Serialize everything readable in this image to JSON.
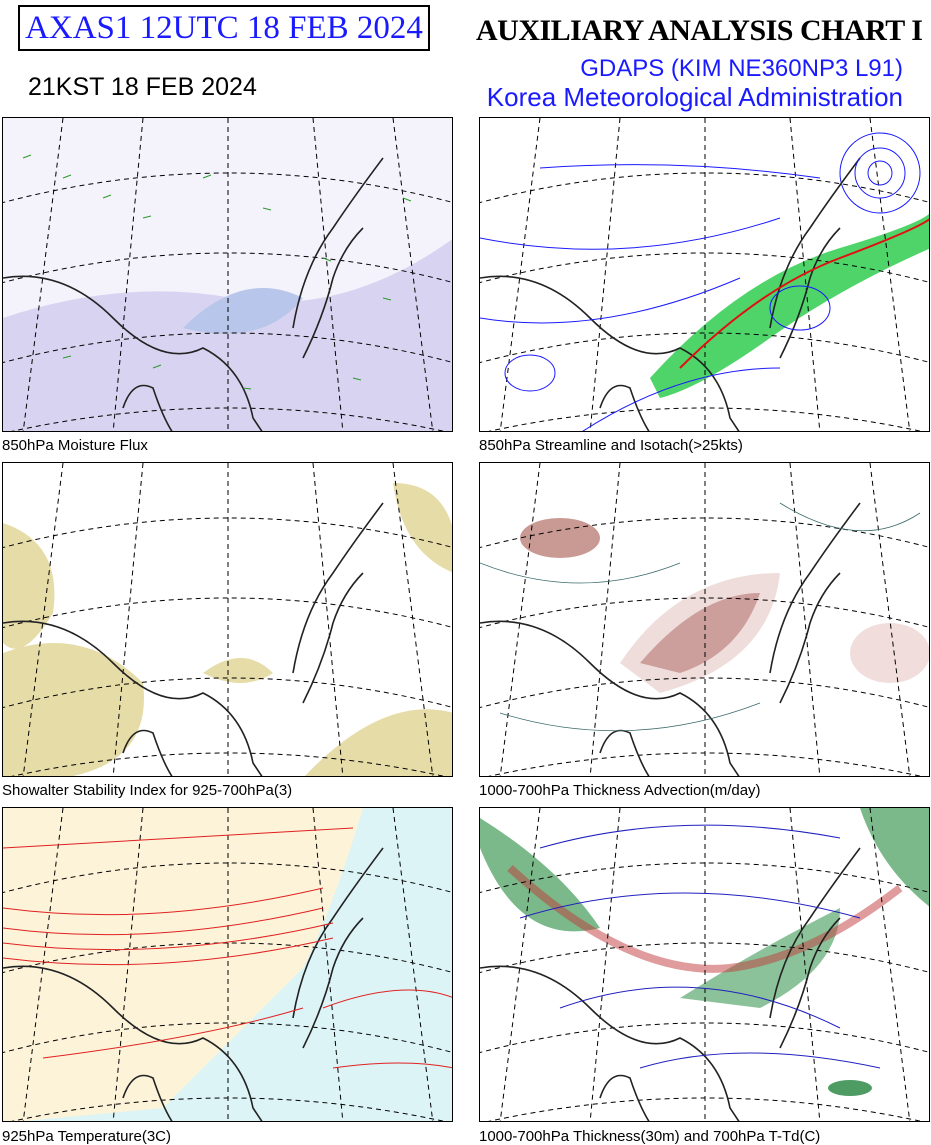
{
  "header": {
    "code_box": "AXAS1  12UTC 18 FEB 2024",
    "title": "AUXILIARY ANALYSIS CHART  I",
    "model": "GDAPS (KIM NE360NP3 L91)",
    "agency": "Korea Meteorological Administration",
    "local_time": "21KST 18 FEB 2024"
  },
  "panels": [
    {
      "caption": "850hPa Moisture Flux"
    },
    {
      "caption": "850hPa Streamline and Isotach(>25kts)"
    },
    {
      "caption": "Showalter Stability Index for 925-700hPa(3)"
    },
    {
      "caption": "1000-700hPa Thickness Advection(m/day)"
    },
    {
      "caption": "925hPa Temperature(3C)"
    },
    {
      "caption": "1000-700hPa Thickness(30m) and 700hPa T-Td(C)"
    }
  ]
}
